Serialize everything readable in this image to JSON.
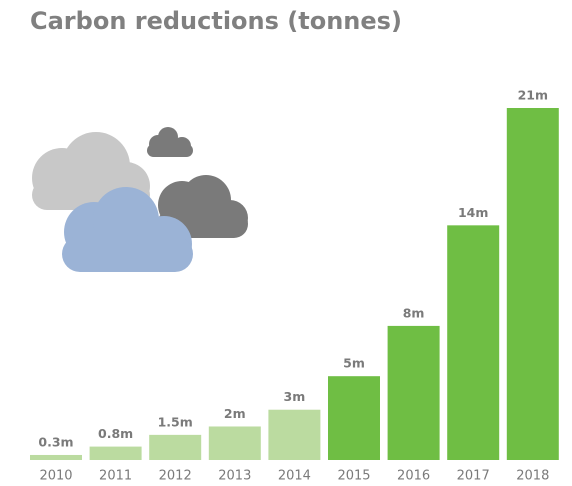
{
  "chart_data": {
    "type": "bar",
    "title": "Carbon reductions (tonnes)",
    "categories": [
      "2010",
      "2011",
      "2012",
      "2013",
      "2014",
      "2015",
      "2016",
      "2017",
      "2018"
    ],
    "values": [
      0.3,
      0.8,
      1.5,
      2,
      3,
      5,
      8,
      14,
      21
    ],
    "value_labels": [
      "0.3m",
      "0.8m",
      "1.5m",
      "2m",
      "3m",
      "5m",
      "8m",
      "14m",
      "21m"
    ],
    "colors": [
      "#bbdba0",
      "#bbdba0",
      "#bbdba0",
      "#bbdba0",
      "#bbdba0",
      "#6fbe44",
      "#6fbe44",
      "#6fbe44",
      "#6fbe44"
    ]
  }
}
